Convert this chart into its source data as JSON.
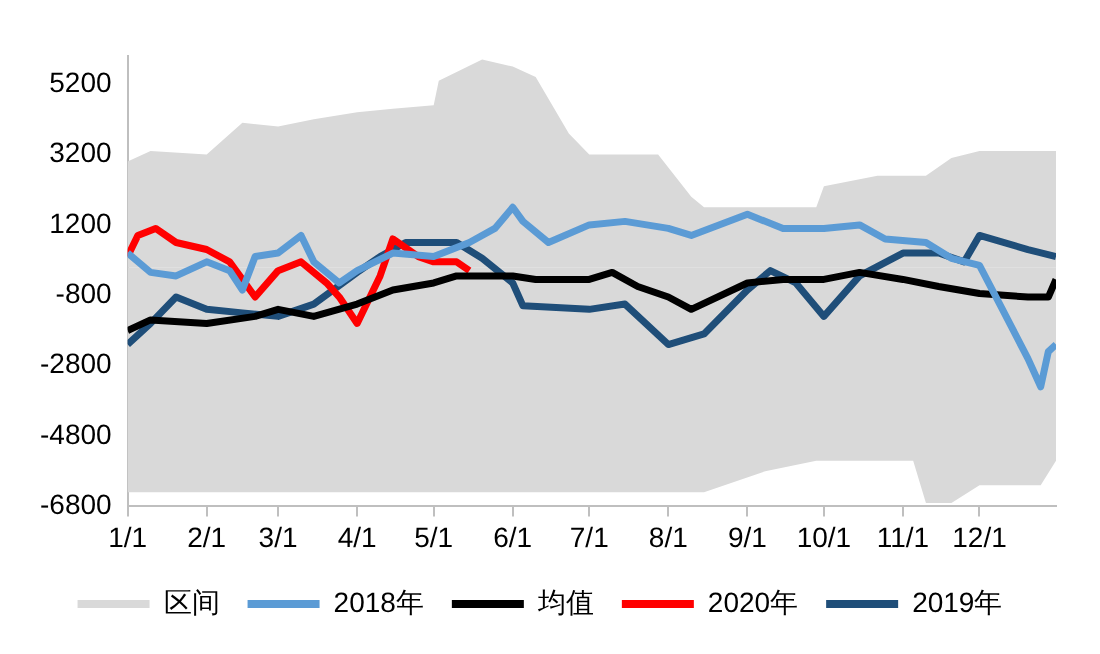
{
  "chart_data": {
    "type": "line",
    "xlim": [
      "--01-01",
      "--12-31"
    ],
    "xticks": [
      {
        "value": "--01-01",
        "label": "1/1"
      },
      {
        "value": "--02-01",
        "label": "2/1"
      },
      {
        "value": "--03-01",
        "label": "3/1"
      },
      {
        "value": "--04-01",
        "label": "4/1"
      },
      {
        "value": "--05-01",
        "label": "5/1"
      },
      {
        "value": "--06-01",
        "label": "6/1"
      },
      {
        "value": "--07-01",
        "label": "7/1"
      },
      {
        "value": "--08-01",
        "label": "8/1"
      },
      {
        "value": "--09-01",
        "label": "9/1"
      },
      {
        "value": "--10-01",
        "label": "10/1"
      },
      {
        "value": "--11-01",
        "label": "11/1"
      },
      {
        "value": "--12-01",
        "label": "12/1"
      }
    ],
    "ylim": [
      -6800,
      6000
    ],
    "yticks": [
      -6800,
      -4800,
      -2800,
      -800,
      1200,
      3200,
      5200
    ],
    "grid": false,
    "legend": "bottom",
    "marker": "none",
    "line_style": "solid",
    "series": [
      {
        "name": "区间",
        "type": "area",
        "color": "#d9d9d9",
        "x": [
          "--01-01",
          "--01-10",
          "--02-01",
          "--02-15",
          "--03-01",
          "--03-15",
          "--04-01",
          "--04-15",
          "--05-01",
          "--05-03",
          "--05-20",
          "--06-01",
          "--06-10",
          "--06-23",
          "--07-01",
          "--07-28",
          "--08-10",
          "--08-15",
          "--09-08",
          "--09-28",
          "--10-01",
          "--10-22",
          "--11-05",
          "--11-10",
          "--11-20",
          "--12-01",
          "--12-20",
          "--12-25",
          "--12-31"
        ],
        "values": [
          3000,
          3300,
          3200,
          4100,
          4000,
          4200,
          4400,
          4500,
          4600,
          5300,
          5900,
          5700,
          5400,
          3800,
          3200,
          3200,
          2000,
          1700,
          1700,
          1700,
          2300,
          2600,
          2600,
          2600,
          3100,
          3300,
          3300,
          3300,
          3300
        ]
      },
      {
        "type": "area",
        "color": "#d9d9d9",
        "x": [
          "--01-01",
          "--01-10",
          "--02-01",
          "--02-15",
          "--03-01",
          "--03-15",
          "--04-01",
          "--04-15",
          "--05-01",
          "--05-03",
          "--05-20",
          "--06-01",
          "--06-10",
          "--06-23",
          "--07-01",
          "--07-28",
          "--08-10",
          "--08-15",
          "--09-08",
          "--09-28",
          "--10-01",
          "--10-22",
          "--11-05",
          "--11-10",
          "--11-20",
          "--12-01",
          "--12-20",
          "--12-25",
          "--12-31"
        ],
        "values": [
          -6400,
          -6400,
          -6400,
          -6400,
          -6400,
          -6400,
          -6400,
          -6400,
          -6400,
          -6400,
          -6400,
          -6400,
          -6400,
          -6400,
          -6400,
          -6400,
          -6400,
          -6400,
          -5800,
          -5500,
          -5500,
          -5500,
          -5500,
          -6700,
          -6700,
          -6200,
          -6200,
          -6200,
          -5500
        ]
      },
      {
        "name": "2018年",
        "color": "#5b9bd5",
        "x": [
          "--01-01",
          "--01-10",
          "--01-20",
          "--02-01",
          "--02-10",
          "--02-15",
          "--02-20",
          "--03-01",
          "--03-10",
          "--03-15",
          "--03-25",
          "--04-01",
          "--04-15",
          "--05-01",
          "--05-15",
          "--05-25",
          "--06-01",
          "--06-05",
          "--06-15",
          "--07-01",
          "--07-15",
          "--08-01",
          "--08-10",
          "--09-01",
          "--09-15",
          "--10-01",
          "--10-15",
          "--10-25",
          "--11-10",
          "--11-20",
          "--12-01",
          "--12-10",
          "--12-20",
          "--12-25",
          "--12-28",
          "--12-31"
        ],
        "values": [
          400,
          -150,
          -250,
          150,
          -100,
          -650,
          300,
          400,
          900,
          150,
          -450,
          -100,
          400,
          300,
          700,
          1100,
          1700,
          1300,
          700,
          1200,
          1300,
          1100,
          900,
          1500,
          1100,
          1100,
          1200,
          800,
          700,
          250,
          50,
          -1200,
          -2600,
          -3400,
          -2400,
          -2200
        ]
      },
      {
        "name": "均值",
        "color": "#000000",
        "x": [
          "--01-01",
          "--01-10",
          "--02-01",
          "--02-20",
          "--03-01",
          "--03-15",
          "--04-01",
          "--04-15",
          "--05-01",
          "--05-10",
          "--06-01",
          "--06-10",
          "--07-01",
          "--07-10",
          "--07-20",
          "--08-01",
          "--08-10",
          "--09-01",
          "--09-15",
          "--10-01",
          "--10-15",
          "--11-01",
          "--11-15",
          "--12-01",
          "--12-20",
          "--12-28",
          "--12-31"
        ],
        "values": [
          -1800,
          -1500,
          -1600,
          -1400,
          -1200,
          -1400,
          -1050,
          -650,
          -450,
          -250,
          -250,
          -350,
          -350,
          -150,
          -550,
          -850,
          -1200,
          -450,
          -350,
          -350,
          -150,
          -350,
          -550,
          -750,
          -850,
          -850,
          -350
        ]
      },
      {
        "name": "2020年",
        "color": "#ff0000",
        "x": [
          "--01-01",
          "--01-05",
          "--01-12",
          "--01-20",
          "--02-01",
          "--02-10",
          "--02-20",
          "--03-01",
          "--03-10",
          "--03-20",
          "--03-25",
          "--04-01",
          "--04-10",
          "--04-15",
          "--04-25",
          "--05-01",
          "--05-10",
          "--05-15"
        ],
        "values": [
          300,
          900,
          1100,
          700,
          500,
          150,
          -850,
          -100,
          150,
          -450,
          -850,
          -1600,
          -250,
          800,
          300,
          150,
          150,
          -100
        ]
      },
      {
        "name": "2019年",
        "color": "#1f4e79",
        "x": [
          "--01-01",
          "--01-10",
          "--01-20",
          "--02-01",
          "--02-15",
          "--03-01",
          "--03-15",
          "--04-01",
          "--04-10",
          "--04-20",
          "--05-01",
          "--05-10",
          "--05-20",
          "--06-01",
          "--06-05",
          "--07-01",
          "--07-15",
          "--08-01",
          "--08-15",
          "--09-01",
          "--09-10",
          "--09-20",
          "--10-01",
          "--10-15",
          "--11-01",
          "--11-15",
          "--11-25",
          "--12-01",
          "--12-20",
          "--12-31"
        ],
        "values": [
          -2200,
          -1600,
          -850,
          -1200,
          -1300,
          -1400,
          -1050,
          -150,
          300,
          700,
          700,
          700,
          250,
          -450,
          -1100,
          -1200,
          -1050,
          -2200,
          -1900,
          -650,
          -100,
          -450,
          -1400,
          -250,
          400,
          400,
          150,
          900,
          500,
          300
        ]
      }
    ]
  }
}
